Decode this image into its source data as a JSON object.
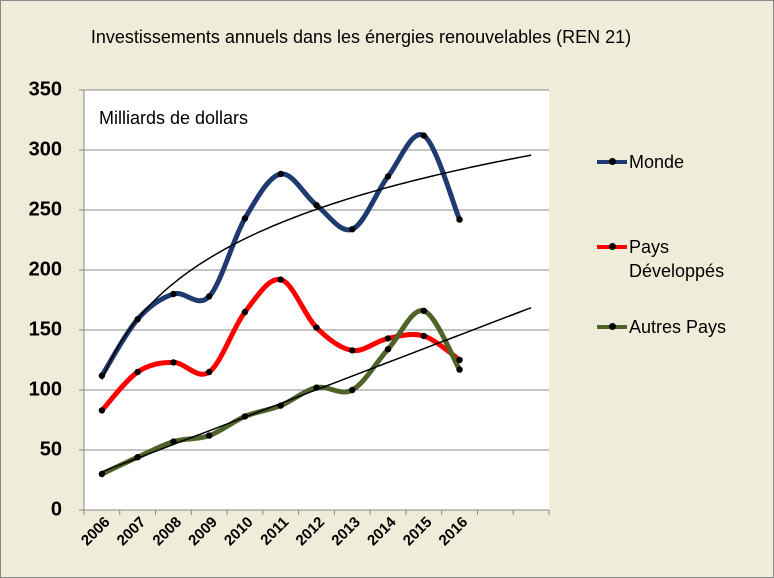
{
  "chart_data": {
    "type": "line",
    "title": "Investissements annuels dans les énergies renouvelables (REN 21)",
    "annotation": "Milliards de dollars",
    "categories": [
      "2006",
      "2007",
      "2008",
      "2009",
      "2010",
      "2011",
      "2012",
      "2013",
      "2014",
      "2015",
      "2016",
      null,
      null
    ],
    "series": [
      {
        "name": "Monde",
        "color": "#1f3a6e",
        "trendline": "log",
        "values": [
          112,
          159,
          180,
          178,
          243,
          280,
          254,
          234,
          278,
          312,
          242,
          null,
          null
        ]
      },
      {
        "name": "Pays Développés",
        "color": "#ff0000",
        "values": [
          83,
          115,
          123,
          115,
          165,
          192,
          152,
          133,
          143,
          145,
          125,
          null,
          null
        ]
      },
      {
        "name": "Autres Pays",
        "color": "#4f6228",
        "trendline": "linear",
        "values": [
          30,
          44,
          57,
          62,
          78,
          87,
          102,
          100,
          134,
          166,
          117,
          null,
          null
        ]
      }
    ],
    "ylim": [
      0,
      350
    ],
    "yticks": [
      0,
      50,
      100,
      150,
      200,
      250,
      300,
      350
    ],
    "grid": true,
    "legend": "right"
  }
}
